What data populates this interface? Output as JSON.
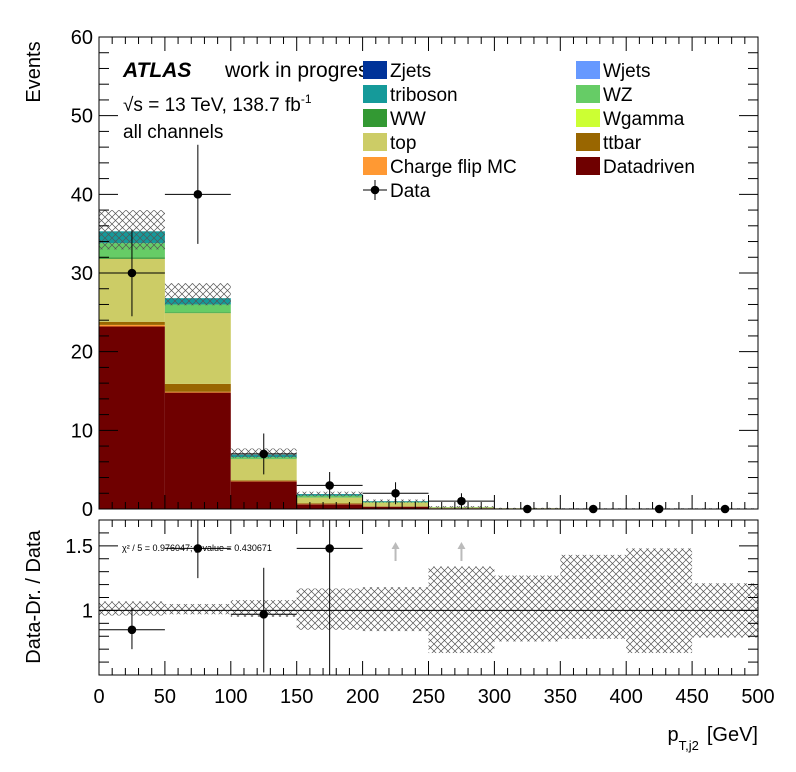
{
  "chart_data": [
    {
      "type": "bar",
      "stacked": true,
      "histogram": true,
      "bin_edges": [
        0,
        50,
        100,
        150,
        200,
        250,
        300,
        350,
        400,
        450,
        500
      ],
      "bin_centers": [
        25,
        75,
        125,
        175,
        225,
        275,
        325,
        375,
        425,
        475
      ],
      "ylabel": "Events",
      "ylim": [
        0,
        60
      ],
      "yticks": [
        0,
        10,
        20,
        30,
        40,
        50,
        60
      ],
      "series": [
        {
          "name": "Datadriven",
          "color": "#6f0000",
          "values": [
            23.2,
            14.8,
            3.5,
            0.6,
            0.3,
            0.1,
            0.05,
            0,
            0,
            0
          ]
        },
        {
          "name": "Charge flip MC",
          "color": "#ff9933",
          "values": [
            0.2,
            0.1,
            0.05,
            0.05,
            0,
            0,
            0,
            0,
            0,
            0
          ]
        },
        {
          "name": "ttbar",
          "color": "#996600",
          "values": [
            0.4,
            1.0,
            0.1,
            0.1,
            0,
            0,
            0,
            0,
            0,
            0
          ]
        },
        {
          "name": "top",
          "color": "#cccc66",
          "values": [
            8.0,
            9.0,
            2.7,
            0.7,
            0.5,
            0.1,
            0.05,
            0,
            0,
            0
          ]
        },
        {
          "name": "Wgamma",
          "color": "#ccff33",
          "values": [
            0,
            0,
            0,
            0,
            0,
            0,
            0,
            0,
            0,
            0
          ]
        },
        {
          "name": "WW",
          "color": "#339933",
          "values": [
            0.2,
            0.1,
            0.05,
            0.05,
            0,
            0,
            0,
            0,
            0,
            0
          ]
        },
        {
          "name": "WZ",
          "color": "#66cc66",
          "values": [
            1.8,
            1.0,
            0.2,
            0.2,
            0.1,
            0.05,
            0,
            0,
            0,
            0
          ]
        },
        {
          "name": "triboson",
          "color": "#159a9a",
          "values": [
            1.5,
            0.8,
            0.3,
            0.2,
            0.1,
            0,
            0,
            0,
            0,
            0
          ]
        },
        {
          "name": "Wjets",
          "color": "#6699ff",
          "values": [
            0,
            0,
            0,
            0,
            0,
            0,
            0,
            0,
            0,
            0
          ]
        },
        {
          "name": "Zjets",
          "color": "#003399",
          "values": [
            0,
            0,
            0,
            0,
            0,
            0,
            0,
            0,
            0,
            0
          ]
        }
      ],
      "uncertainty_band": {
        "low": [
          33.0,
          25.9,
          6.5,
          1.6,
          0.8,
          0.18,
          0.05,
          0,
          0,
          0
        ],
        "high": [
          38.0,
          28.7,
          7.7,
          2.2,
          1.2,
          0.38,
          0.15,
          0.1,
          0.1,
          0.1
        ]
      },
      "data": {
        "name": "Data",
        "values": [
          30,
          40,
          7,
          3,
          2,
          1,
          0,
          0,
          0,
          0
        ],
        "err_high": [
          5.5,
          6.3,
          2.6,
          1.7,
          1.4,
          1.0,
          0,
          0,
          0,
          0
        ],
        "err_low": [
          5.5,
          6.3,
          2.6,
          1.7,
          1.4,
          1.0,
          0,
          0,
          0,
          0
        ]
      },
      "legend": {
        "left": [
          "Zjets",
          "triboson",
          "WW",
          "top",
          "Charge flip MC",
          "Data"
        ],
        "right": [
          "Wjets",
          "WZ",
          "Wgamma",
          "ttbar",
          "Datadriven"
        ]
      },
      "atlas_label": "ATLAS",
      "atlas_sublabel": "work in progress",
      "energy_label_prefix": "√s = 13 TeV, 138.7 fb",
      "energy_label_exp": "-1",
      "channel_label": "all channels"
    },
    {
      "type": "scatter",
      "ylabel": "Data-Dr. / Data",
      "ylim": [
        0.5,
        1.7
      ],
      "yticks": [
        1,
        1.5
      ],
      "reference_line": 1,
      "xlim": [
        0,
        500
      ],
      "xticks": [
        0,
        50,
        100,
        150,
        200,
        250,
        300,
        350,
        400,
        450,
        500
      ],
      "xlabel_main": "p",
      "xlabel_sub": "T,j2",
      "xlabel_unit": "[GeV]",
      "stat_text": "χ² / 5 = 0.976047; p value = 0.430671",
      "points": [
        {
          "x": 25,
          "y": 0.85,
          "err_low": 0.15,
          "err_high": 0.17,
          "xerr": 25
        },
        {
          "x": 75,
          "y": 1.48,
          "err_low": 0.23,
          "err_high": 0.22,
          "xerr": 25
        },
        {
          "x": 125,
          "y": 0.97,
          "err_low": 0.45,
          "err_high": 0.36,
          "xerr": 25
        },
        {
          "x": 175,
          "y": 1.48,
          "err_low": 0.98,
          "err_high": 0.35,
          "xerr": 25
        }
      ],
      "offscale_arrows": [
        225,
        275
      ],
      "band": {
        "low": [
          0.96,
          0.97,
          0.95,
          0.85,
          0.84,
          0.67,
          0.76,
          0.78,
          0.67,
          0.79
        ],
        "high": [
          1.07,
          1.05,
          1.08,
          1.17,
          1.18,
          1.34,
          1.27,
          1.43,
          1.48,
          1.21
        ]
      }
    }
  ]
}
